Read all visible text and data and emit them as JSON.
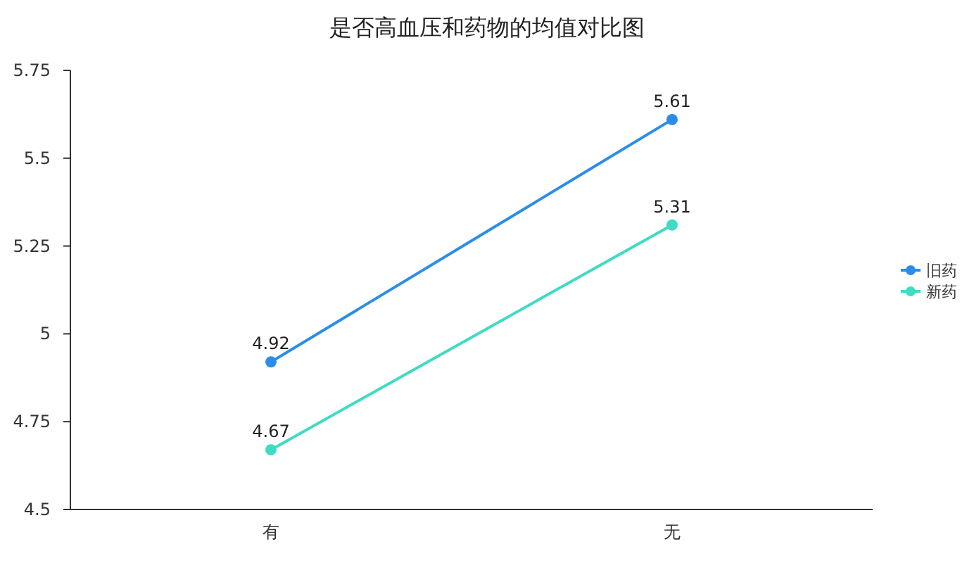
{
  "chart_data": {
    "type": "line",
    "title": "是否高血压和药物的均值对比图",
    "categories": [
      "有",
      "无"
    ],
    "series": [
      {
        "name": "旧药",
        "color": "#2b8de8",
        "values": [
          4.92,
          5.61
        ]
      },
      {
        "name": "新药",
        "color": "#3fdbc3",
        "values": [
          4.67,
          5.31
        ]
      }
    ],
    "ylim": [
      4.5,
      5.75
    ],
    "yticks": [
      4.5,
      4.75,
      5,
      5.25,
      5.5,
      5.75
    ],
    "data_labels": true,
    "legend": "right",
    "marker": "circle",
    "grid": false
  }
}
